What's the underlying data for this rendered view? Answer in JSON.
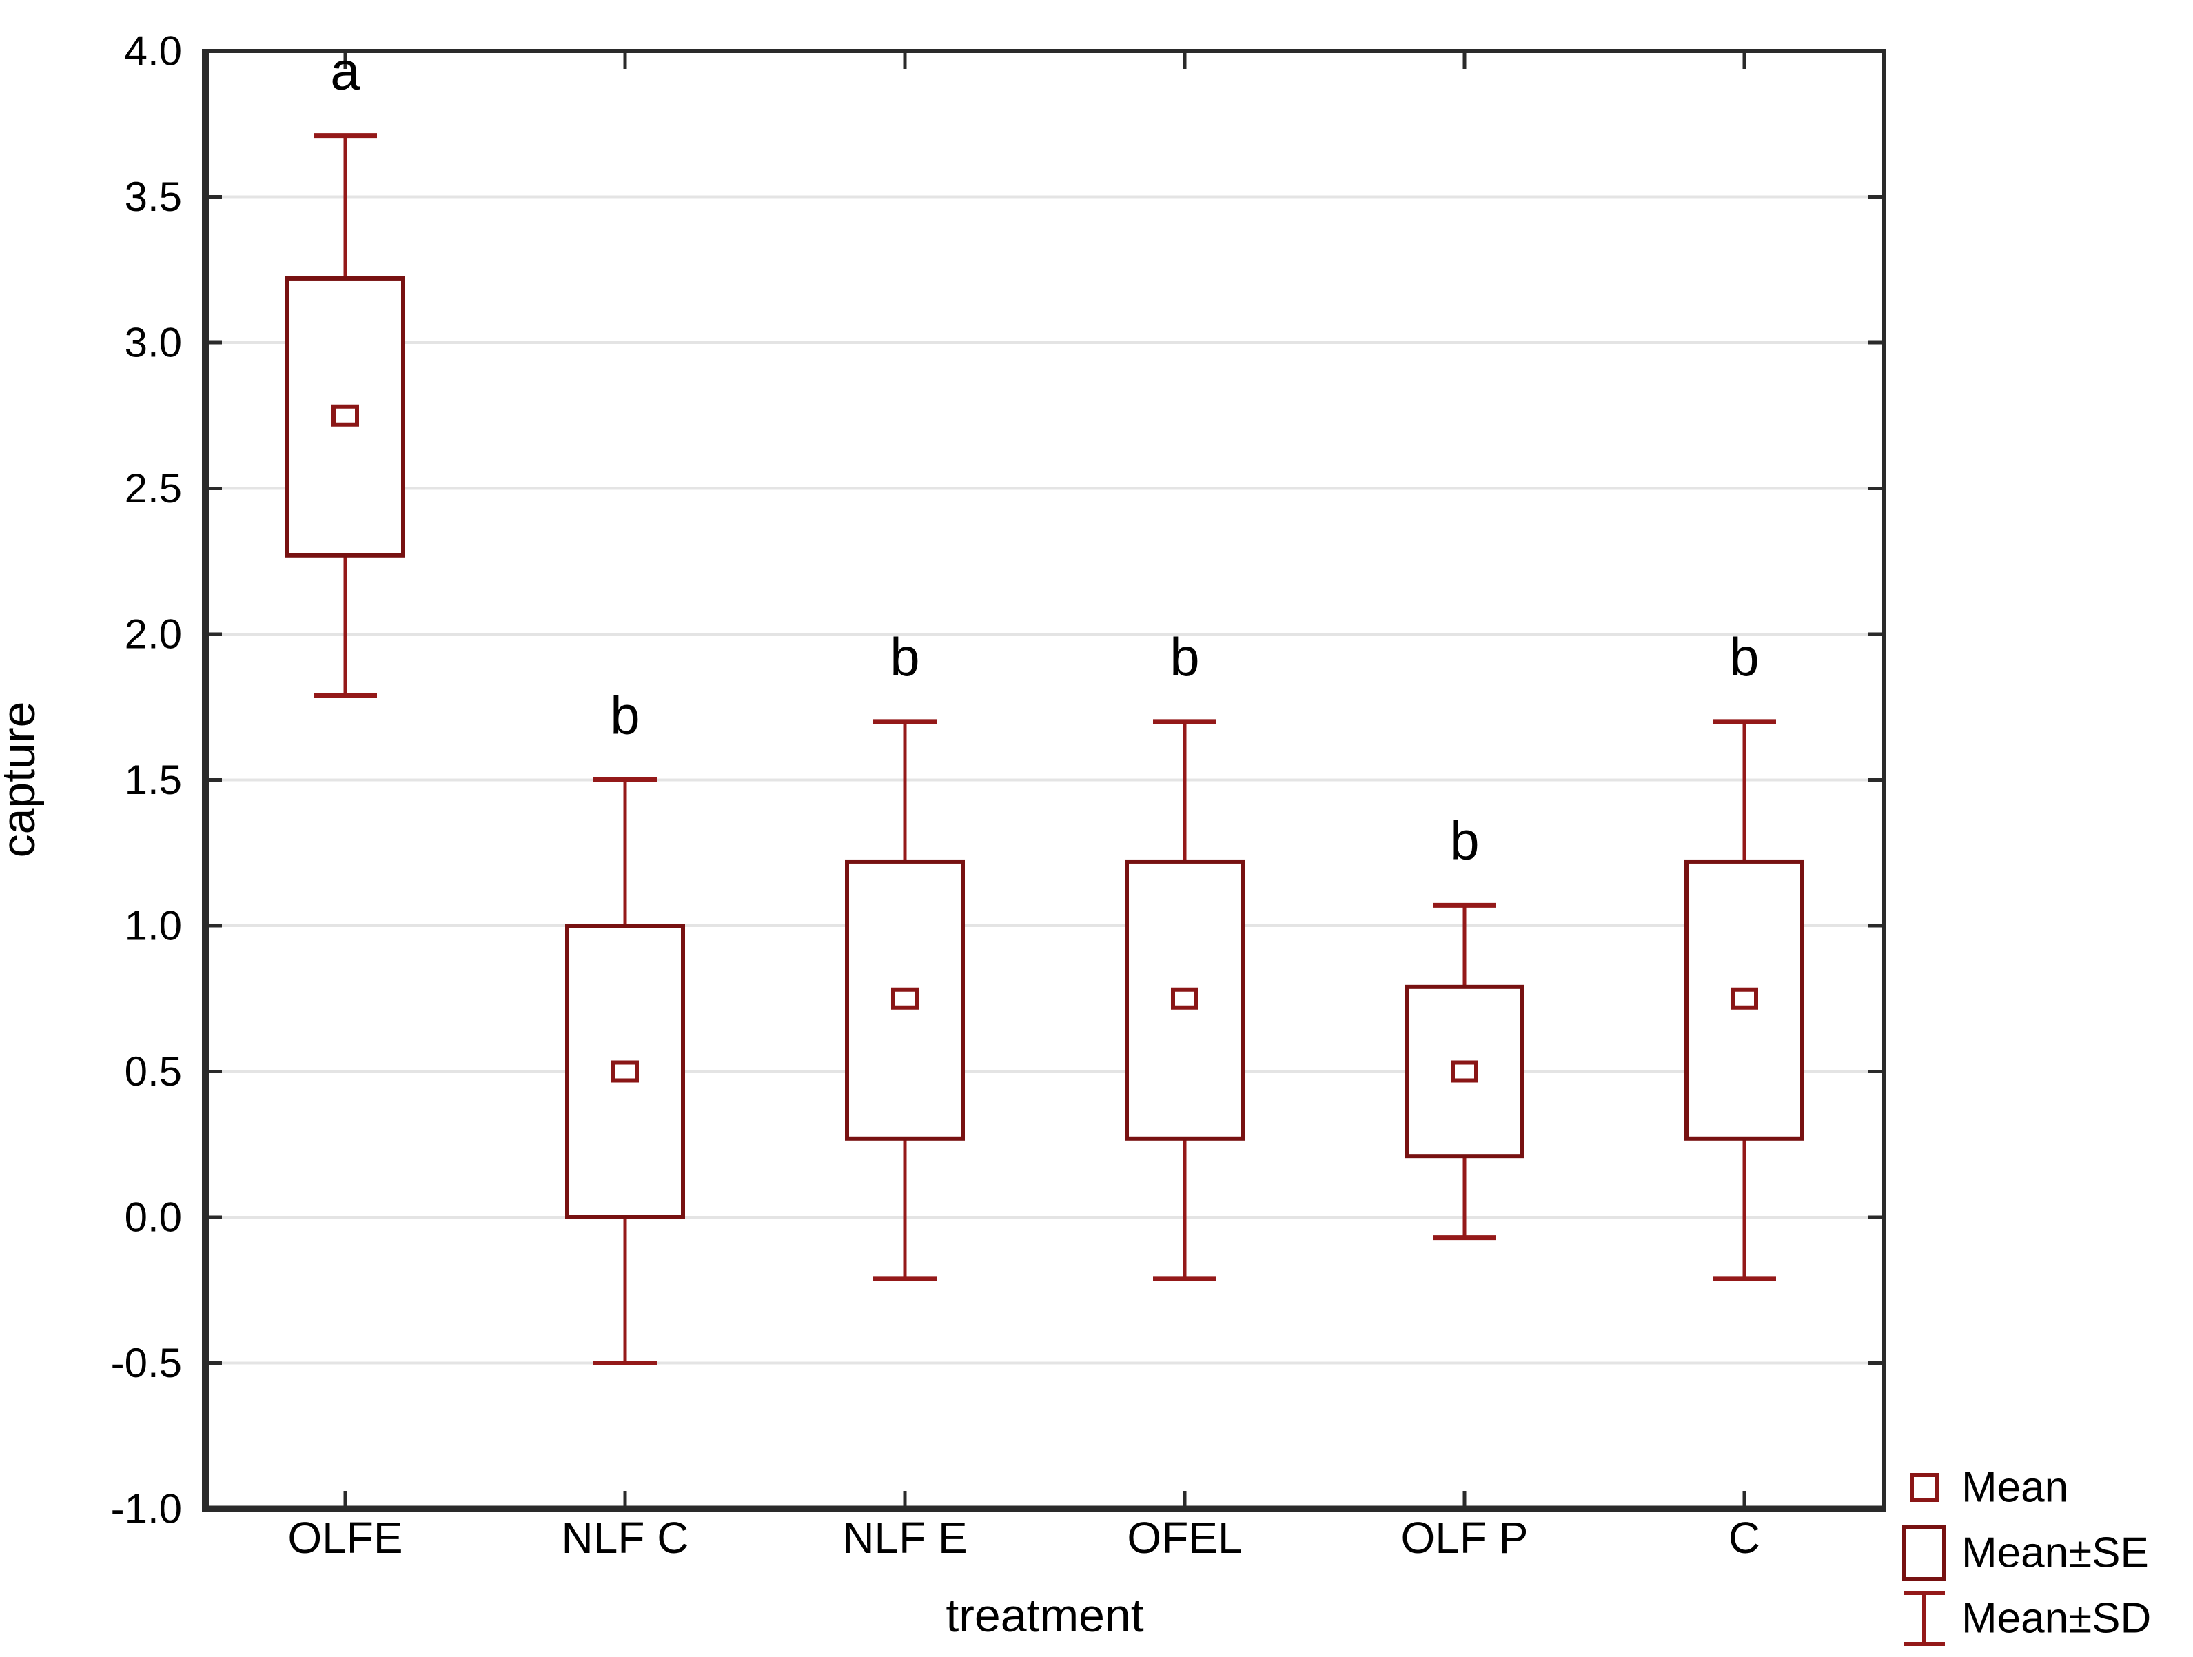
{
  "chart_data": {
    "type": "box",
    "title": "",
    "xlabel": "treatment",
    "ylabel": "capture",
    "ylim": [
      -1.0,
      4.0
    ],
    "ytick_interval": 0.5,
    "ytick_labels": [
      "4.0",
      "3.5",
      "3.0",
      "2.5",
      "2.0",
      "1.5",
      "1.0",
      "0.5",
      "0.0",
      "-0.5",
      "-1.0"
    ],
    "grid": "horizontal",
    "categories": [
      "OLFE",
      "NLF C",
      "NLF E",
      "OFEL",
      "OLF P",
      "C"
    ],
    "series": [
      {
        "label": "OLFE",
        "mean": 2.75,
        "se": [
          2.27,
          3.22
        ],
        "sd": [
          1.79,
          3.71
        ],
        "letter": "a"
      },
      {
        "label": "NLF C",
        "mean": 0.5,
        "se": [
          0.0,
          1.0
        ],
        "sd": [
          -0.5,
          1.5
        ],
        "letter": "b"
      },
      {
        "label": "NLF E",
        "mean": 0.75,
        "se": [
          0.27,
          1.22
        ],
        "sd": [
          -0.21,
          1.7
        ],
        "letter": "b"
      },
      {
        "label": "OFEL",
        "mean": 0.75,
        "se": [
          0.27,
          1.22
        ],
        "sd": [
          -0.21,
          1.7
        ],
        "letter": "b"
      },
      {
        "label": "OLF P",
        "mean": 0.5,
        "se": [
          0.21,
          0.79
        ],
        "sd": [
          -0.07,
          1.07
        ],
        "letter": "b"
      },
      {
        "label": "C",
        "mean": 0.75,
        "se": [
          0.27,
          1.22
        ],
        "sd": [
          -0.21,
          1.7
        ],
        "letter": "b"
      }
    ],
    "legend_position": "bottom-right",
    "legend": [
      {
        "icon": "mean-marker-icon",
        "label": "Mean"
      },
      {
        "icon": "se-box-icon",
        "label": "Mean±SE"
      },
      {
        "icon": "sd-whisker-icon",
        "label": "Mean±SD"
      }
    ]
  },
  "colors": {
    "box_stroke": "#771111",
    "whisker_stroke": "#941919",
    "mean_marker_stroke": "#8a1616",
    "gridline": "#e4e4e4",
    "frame": "#2a2a2a",
    "text": "#000000",
    "background": "#ffffff"
  }
}
